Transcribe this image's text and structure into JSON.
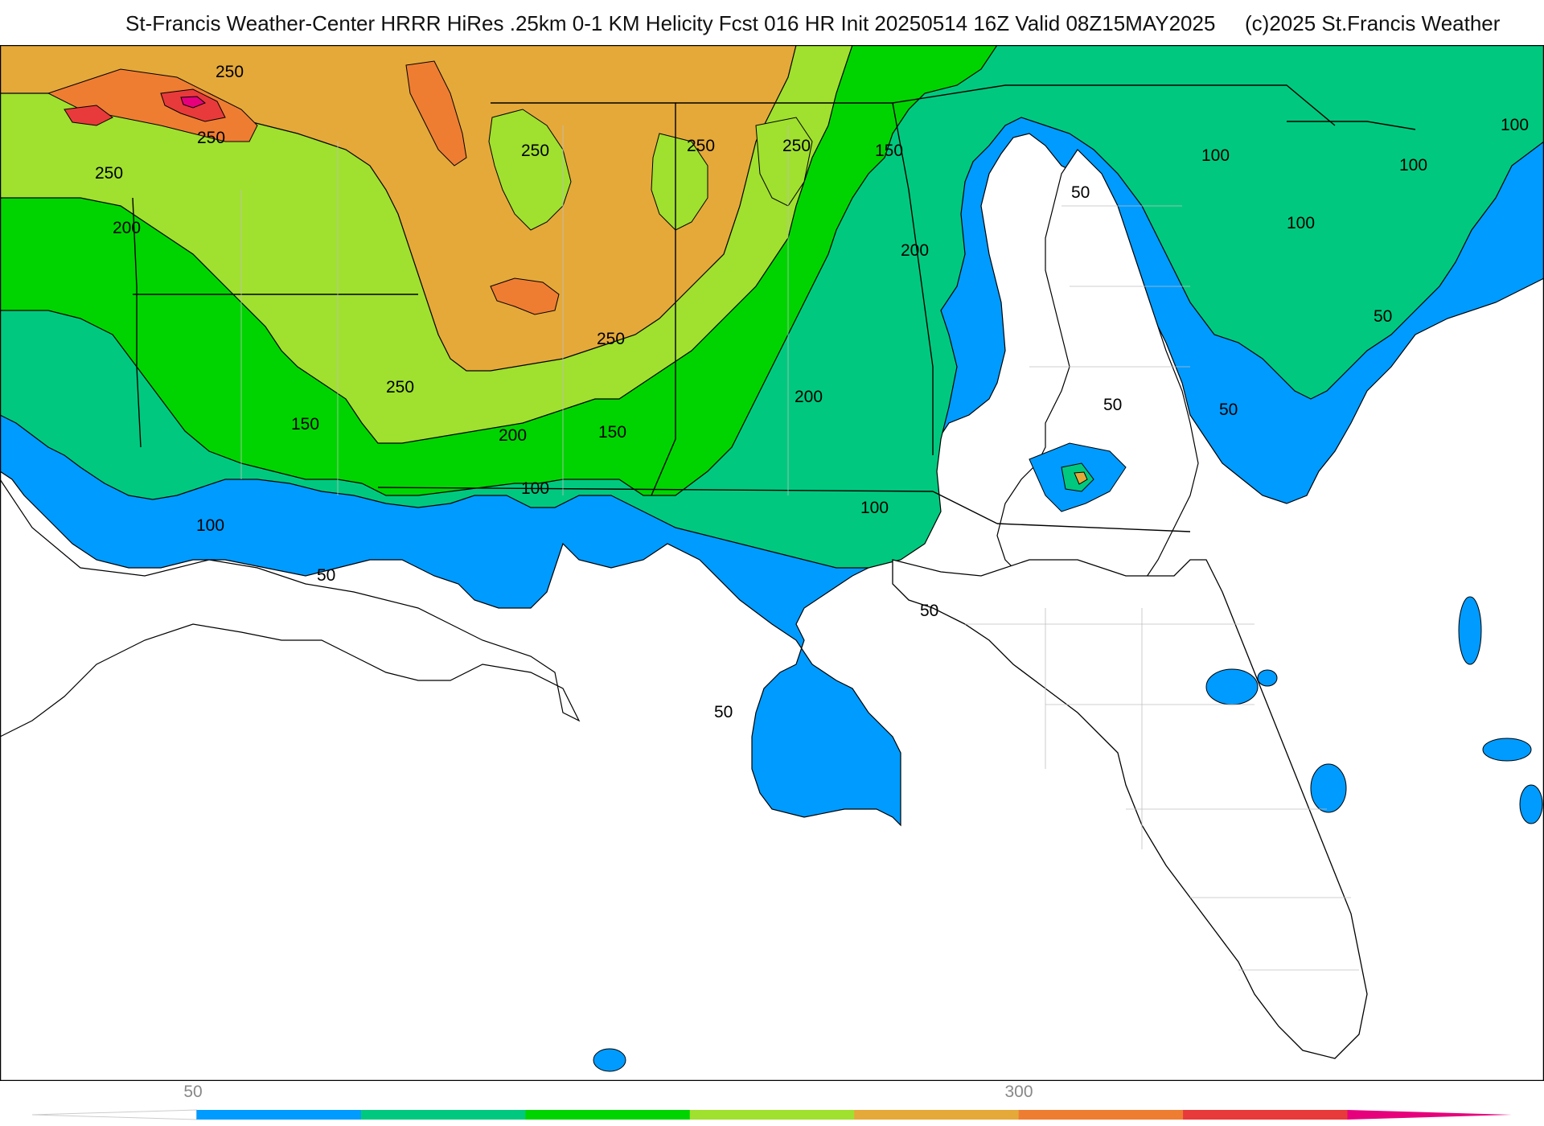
{
  "header": {
    "title": "St-Francis Weather-Center HRRR HiRes .25km 0-1 KM Helicity Fcst 016 HR Init 20250514 16Z  Valid 08Z15MAY2025",
    "copyright": "(c)2025 St.Francis Weather"
  },
  "map": {
    "field": "0-1 KM Helicity",
    "contour_labels": [
      "250",
      "250",
      "250",
      "250",
      "200",
      "200",
      "200",
      "200",
      "150",
      "150",
      "150",
      "100",
      "100",
      "100",
      "100",
      "100",
      "100",
      "100",
      "50",
      "50",
      "50",
      "50",
      "50",
      "50",
      "50",
      "250",
      "250",
      "250",
      "250"
    ],
    "fill_colors": {
      "50": "#009bff",
      "100": "#00c97f",
      "150": "#00d400",
      "200": "#a0e02f",
      "250": "#e5a93a",
      "300": "#ee7d32",
      "350": "#e83a3a",
      "400": "#e6007c"
    },
    "land_color": "#ffffff",
    "border_color": "#000000",
    "county_color": "#bfbfbf"
  },
  "colorbar": {
    "tick_labels": [
      "50",
      "300"
    ],
    "colors": [
      "#ffffff",
      "#009bff",
      "#00c97f",
      "#00d400",
      "#a0e02f",
      "#e5a93a",
      "#ee7d32",
      "#e83a3a",
      "#e6007c"
    ]
  }
}
